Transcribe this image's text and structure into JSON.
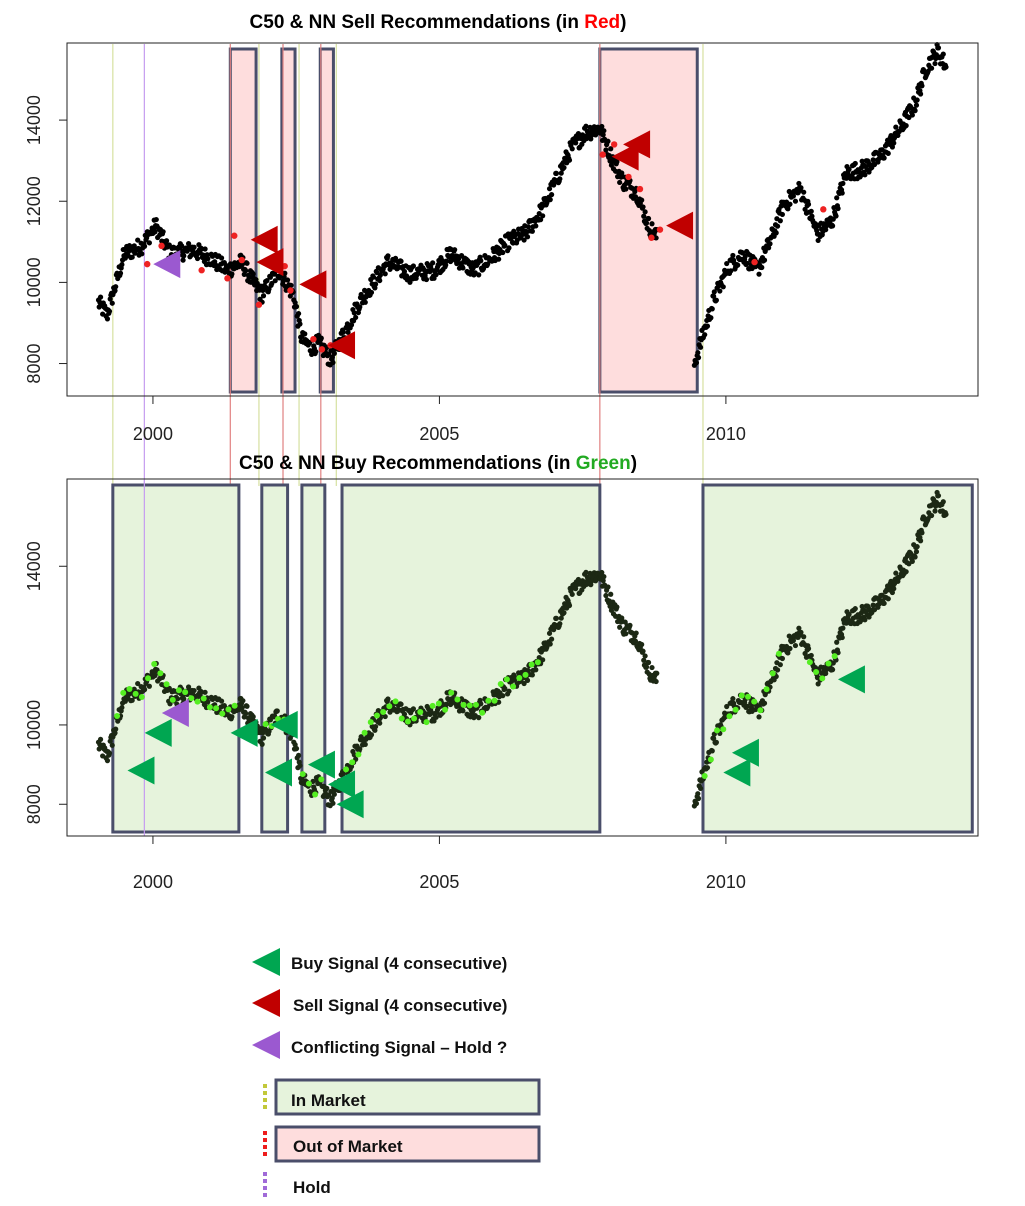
{
  "chart_data": [
    {
      "type": "scatter",
      "title_parts": [
        "C50  & NN Sell Recommendations (in ",
        "Red",
        ")"
      ],
      "title_color_word": "#ff0000",
      "xlim": [
        1998.5,
        2014.4
      ],
      "ylim": [
        7200,
        15900
      ],
      "x_ticks": [
        2000,
        2005,
        2010
      ],
      "y_ticks": [
        8000,
        10000,
        12000,
        14000
      ],
      "x_tick_labels": [
        "2000",
        "2005",
        "2010"
      ],
      "y_tick_labels": [
        "8000",
        "10000",
        "12000",
        "14000"
      ],
      "shaded_regions": [
        {
          "x0": 2001.35,
          "x1": 2001.8
        },
        {
          "x0": 2002.25,
          "x1": 2002.48
        },
        {
          "x0": 2002.92,
          "x1": 2003.15
        },
        {
          "x0": 2007.8,
          "x1": 2009.5
        }
      ],
      "highlight_points": [
        {
          "x": 1999.9,
          "y": 10450
        },
        {
          "x": 2000.15,
          "y": 10900
        },
        {
          "x": 2000.85,
          "y": 10300
        },
        {
          "x": 2001.3,
          "y": 10100
        },
        {
          "x": 2001.42,
          "y": 11150
        },
        {
          "x": 2001.55,
          "y": 10550
        },
        {
          "x": 2001.85,
          "y": 9450
        },
        {
          "x": 2002.3,
          "y": 10400
        },
        {
          "x": 2002.4,
          "y": 9800
        },
        {
          "x": 2002.8,
          "y": 8600
        },
        {
          "x": 2002.95,
          "y": 8350
        },
        {
          "x": 2003.1,
          "y": 8450
        },
        {
          "x": 2007.85,
          "y": 13150
        },
        {
          "x": 2008.05,
          "y": 13400
        },
        {
          "x": 2008.3,
          "y": 12600
        },
        {
          "x": 2008.5,
          "y": 12300
        },
        {
          "x": 2008.7,
          "y": 11100
        },
        {
          "x": 2008.85,
          "y": 11300
        },
        {
          "x": 2010.5,
          "y": 10500
        },
        {
          "x": 2011.7,
          "y": 11800
        }
      ],
      "signals": [
        {
          "type": "sell",
          "x": 2001.95,
          "y": 11050
        },
        {
          "type": "sell",
          "x": 2002.05,
          "y": 10500
        },
        {
          "type": "sell",
          "x": 2002.8,
          "y": 9950
        },
        {
          "type": "sell",
          "x": 2003.3,
          "y": 8450
        },
        {
          "type": "sell",
          "x": 2008.25,
          "y": 13100
        },
        {
          "type": "sell",
          "x": 2008.45,
          "y": 13400
        },
        {
          "type": "sell",
          "x": 2009.2,
          "y": 11400
        },
        {
          "type": "hold",
          "x": 2000.25,
          "y": 10450
        }
      ]
    },
    {
      "type": "scatter",
      "title_parts": [
        "C50  & NN Buy Recommendations (in ",
        "Green",
        ")"
      ],
      "title_color_word": "#22aa22",
      "xlim": [
        1998.5,
        2014.4
      ],
      "ylim": [
        7200,
        16200
      ],
      "x_ticks": [
        2000,
        2005,
        2010
      ],
      "y_ticks": [
        8000,
        10000,
        14000
      ],
      "x_tick_labels": [
        "2000",
        "2005",
        "2010"
      ],
      "y_tick_labels": [
        "8000",
        "10000",
        "14000"
      ],
      "shaded_regions": [
        {
          "x0": 1999.3,
          "x1": 2001.5
        },
        {
          "x0": 2001.9,
          "x1": 2002.35
        },
        {
          "x0": 2002.6,
          "x1": 2003.0
        },
        {
          "x0": 2003.3,
          "x1": 2007.8
        },
        {
          "x0": 2009.6,
          "x1": 2014.3
        }
      ],
      "signals": [
        {
          "type": "buy",
          "x": 1999.8,
          "y": 8850
        },
        {
          "type": "buy",
          "x": 2000.1,
          "y": 9800
        },
        {
          "type": "buy",
          "x": 2001.6,
          "y": 9800
        },
        {
          "type": "buy",
          "x": 2002.2,
          "y": 8800
        },
        {
          "type": "buy",
          "x": 2002.3,
          "y": 10000
        },
        {
          "type": "buy",
          "x": 2002.95,
          "y": 9000
        },
        {
          "type": "buy",
          "x": 2003.3,
          "y": 8500
        },
        {
          "type": "buy",
          "x": 2003.45,
          "y": 8000
        },
        {
          "type": "buy",
          "x": 2010.2,
          "y": 8800
        },
        {
          "type": "buy",
          "x": 2010.35,
          "y": 9300
        },
        {
          "type": "buy",
          "x": 2012.2,
          "y": 11150
        },
        {
          "type": "hold",
          "x": 2000.4,
          "y": 10300
        }
      ]
    }
  ],
  "legend": {
    "buy": "Buy Signal (4 consecutive)",
    "sell": "Sell Signal (4 consecutive)",
    "conflict": "Conflicting Signal – Hold ?",
    "in_market": "In Market",
    "out_market": "Out of Market",
    "hold": "Hold"
  },
  "colors": {
    "sell": "#c00000",
    "buy": "#00a651",
    "hold": "#9b59d0",
    "in_fill": "#e6f3dc",
    "out_fill": "#fedddd",
    "box_border": "#4a4e6a",
    "series": "#000000",
    "buy_points": "#55ee22",
    "sell_points": "#ee2222"
  }
}
